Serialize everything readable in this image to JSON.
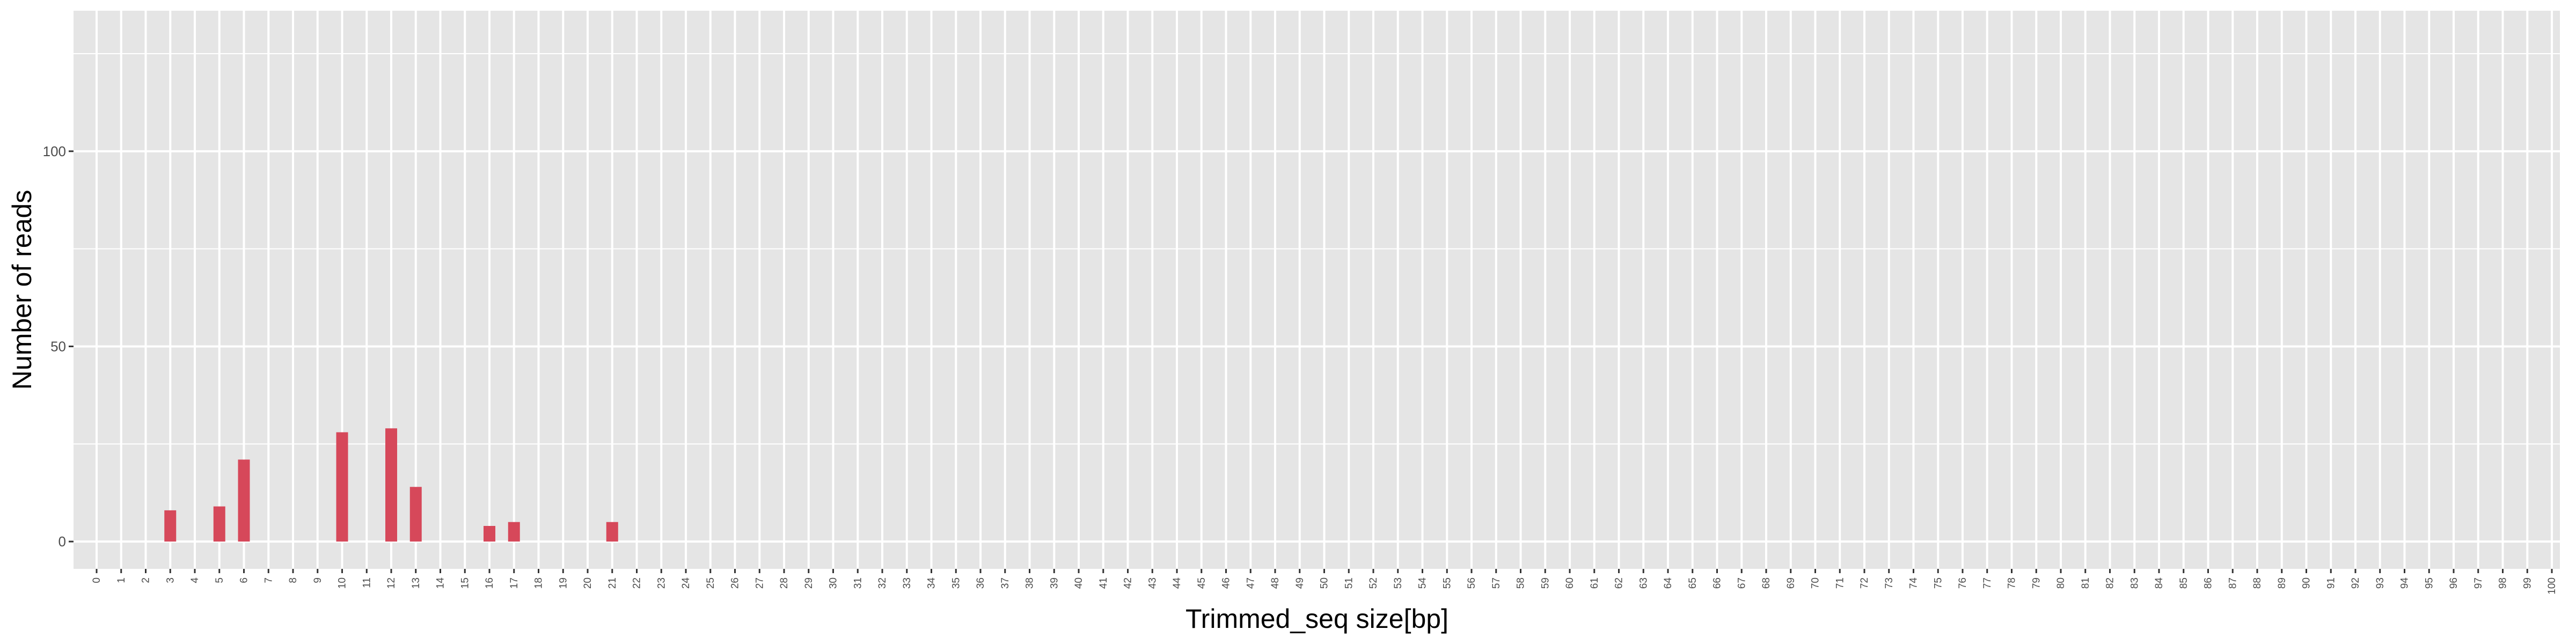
{
  "chart_data": {
    "type": "bar",
    "title": "",
    "xlabel": "Trimmed_seq size[bp]",
    "ylabel": "Number of reads",
    "x_range": [
      0,
      100
    ],
    "ylim": [
      -7,
      136
    ],
    "y_ticks": [
      0,
      50,
      100
    ],
    "grid": true,
    "legend": "none",
    "bar_color": "#d6485a",
    "panel_color": "#e5e5e5",
    "grid_color": "#ffffff",
    "x": [
      3,
      5,
      6,
      10,
      12,
      13,
      16,
      17,
      21
    ],
    "values": [
      8,
      9,
      21,
      28,
      29,
      14,
      4,
      5,
      5
    ]
  }
}
